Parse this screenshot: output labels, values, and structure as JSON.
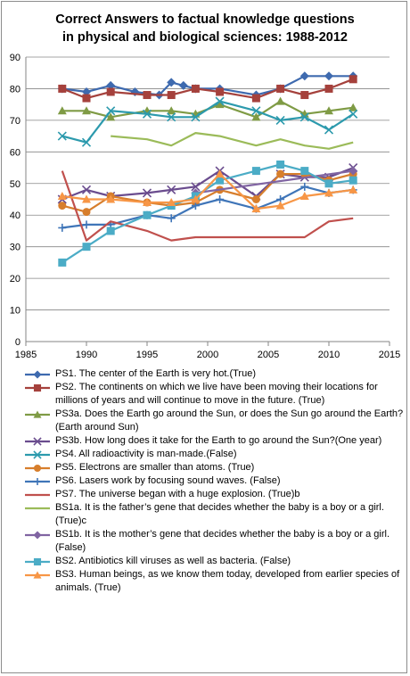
{
  "chart_data": {
    "type": "line",
    "title_lines": [
      "Correct Answers to factual knowledge questions",
      "in physical and biological sciences: 1988-2012"
    ],
    "xlim": [
      1985,
      2015
    ],
    "ylim": [
      0,
      90
    ],
    "x_ticks": [
      1985,
      1990,
      1995,
      2000,
      2005,
      2010,
      2015
    ],
    "y_ticks": [
      0,
      10,
      20,
      30,
      40,
      50,
      60,
      70,
      80,
      90
    ],
    "grid": "horizontal",
    "legend_position": "bottom",
    "series": [
      {
        "name": "PS1. The center of the Earth is very hot.(True)",
        "color": "#3e6aaf",
        "marker": "diamond",
        "points": [
          [
            1988,
            80
          ],
          [
            1990,
            79
          ],
          [
            1992,
            81
          ],
          [
            1994,
            79
          ],
          [
            1996,
            78
          ],
          [
            1997,
            82
          ],
          [
            1998,
            81
          ],
          [
            1999,
            80
          ],
          [
            2001,
            80
          ],
          [
            2004,
            78
          ],
          [
            2006,
            80
          ],
          [
            2008,
            84
          ],
          [
            2010,
            84
          ],
          [
            2012,
            84
          ]
        ]
      },
      {
        "name": "PS2. The continents on which we live have been moving their locations for millions of years and will continue to move in the future. (True)",
        "color": "#a5413c",
        "marker": "square",
        "points": [
          [
            1988,
            80
          ],
          [
            1990,
            77
          ],
          [
            1992,
            79
          ],
          [
            1995,
            78
          ],
          [
            1997,
            78
          ],
          [
            1999,
            80
          ],
          [
            2001,
            79
          ],
          [
            2004,
            77
          ],
          [
            2006,
            80
          ],
          [
            2008,
            78
          ],
          [
            2010,
            80
          ],
          [
            2012,
            83
          ]
        ]
      },
      {
        "name": "PS3a. Does the Earth go around the Sun, or does the Sun go around the Earth? (Earth around Sun)",
        "color": "#7f9b45",
        "marker": "triangle",
        "points": [
          [
            1988,
            73
          ],
          [
            1990,
            73
          ],
          [
            1992,
            71
          ],
          [
            1995,
            73
          ],
          [
            1997,
            73
          ],
          [
            1999,
            72
          ],
          [
            2001,
            75
          ],
          [
            2004,
            71
          ],
          [
            2006,
            76
          ],
          [
            2008,
            72
          ],
          [
            2010,
            73
          ],
          [
            2012,
            74
          ]
        ]
      },
      {
        "name": "PS3b. How long does it take for the Earth to go around the Sun?(One year)",
        "color": "#6a4c8e",
        "marker": "x",
        "points": [
          [
            1988,
            45
          ],
          [
            1990,
            48
          ],
          [
            1992,
            46
          ],
          [
            1995,
            47
          ],
          [
            1997,
            48
          ],
          [
            1999,
            49
          ],
          [
            2001,
            54
          ],
          [
            2004,
            46
          ],
          [
            2006,
            53
          ],
          [
            2008,
            52
          ],
          [
            2010,
            52
          ],
          [
            2012,
            55
          ]
        ]
      },
      {
        "name": "PS4. All radioactivity is man-made.(False)",
        "color": "#2c9aad",
        "marker": "x",
        "points": [
          [
            1988,
            65
          ],
          [
            1990,
            63
          ],
          [
            1992,
            73
          ],
          [
            1995,
            72
          ],
          [
            1997,
            71
          ],
          [
            1999,
            71
          ],
          [
            2001,
            76
          ],
          [
            2004,
            73
          ],
          [
            2006,
            70
          ],
          [
            2008,
            71
          ],
          [
            2010,
            67
          ],
          [
            2012,
            72
          ]
        ]
      },
      {
        "name": "PS5. Electrons are smaller than atoms. (True)",
        "color": "#d77e2c",
        "marker": "circle",
        "points": [
          [
            1988,
            43
          ],
          [
            1990,
            41
          ],
          [
            1992,
            46
          ],
          [
            1995,
            44
          ],
          [
            1997,
            43
          ],
          [
            1999,
            44
          ],
          [
            2001,
            48
          ],
          [
            2004,
            45
          ],
          [
            2006,
            53
          ],
          [
            2008,
            53
          ],
          [
            2010,
            51
          ],
          [
            2012,
            53
          ]
        ]
      },
      {
        "name": "PS6. Lasers work by focusing sound waves. (False)",
        "color": "#3f75b8",
        "marker": "plus",
        "points": [
          [
            1988,
            36
          ],
          [
            1990,
            37
          ],
          [
            1992,
            37
          ],
          [
            1995,
            40
          ],
          [
            1997,
            39
          ],
          [
            1999,
            43
          ],
          [
            2001,
            45
          ],
          [
            2004,
            42
          ],
          [
            2006,
            45
          ],
          [
            2008,
            49
          ],
          [
            2010,
            47
          ],
          [
            2012,
            48
          ]
        ]
      },
      {
        "name": "PS7. The universe began with a huge explosion. (True)b",
        "color": "#c0504d",
        "marker": "none",
        "points": [
          [
            1988,
            54
          ],
          [
            1990,
            32
          ],
          [
            1992,
            38
          ],
          [
            1995,
            35
          ],
          [
            1997,
            32
          ],
          [
            1999,
            33
          ],
          [
            2001,
            33
          ],
          [
            2004,
            33
          ],
          [
            2006,
            33
          ],
          [
            2008,
            33
          ],
          [
            2010,
            38
          ],
          [
            2012,
            39
          ]
        ]
      },
      {
        "name": "BS1a. It is the father’s gene that decides whether the baby is a boy or a girl.(True)c",
        "color": "#9bbb59",
        "marker": "none",
        "points": [
          [
            1992,
            65
          ],
          [
            1995,
            64
          ],
          [
            1997,
            62
          ],
          [
            1999,
            66
          ],
          [
            2001,
            65
          ],
          [
            2004,
            62
          ],
          [
            2006,
            64
          ],
          [
            2008,
            62
          ],
          [
            2010,
            61
          ],
          [
            2012,
            63
          ]
        ]
      },
      {
        "name": "BS1b. It is the mother’s gene that decides whether the baby is a boy or a girl.(False)",
        "color": "#8064a2",
        "marker": "diamond",
        "points": [
          [
            1999,
            47
          ],
          [
            2012,
            54
          ]
        ]
      },
      {
        "name": "BS2. Antibiotics kill viruses as well as bacteria. (False)",
        "color": "#4bacc6",
        "marker": "square",
        "points": [
          [
            1988,
            25
          ],
          [
            1990,
            30
          ],
          [
            1992,
            35
          ],
          [
            1995,
            40
          ],
          [
            1997,
            43
          ],
          [
            1999,
            46
          ],
          [
            2001,
            51
          ],
          [
            2004,
            54
          ],
          [
            2006,
            56
          ],
          [
            2008,
            54
          ],
          [
            2010,
            50
          ],
          [
            2012,
            51
          ]
        ]
      },
      {
        "name": "BS3. Human beings, as we know them today, developed from earlier species of animals. (True)",
        "color": "#f79646",
        "marker": "triangle",
        "points": [
          [
            1988,
            46
          ],
          [
            1990,
            45
          ],
          [
            1992,
            45
          ],
          [
            1995,
            44
          ],
          [
            1997,
            44
          ],
          [
            1999,
            45
          ],
          [
            2001,
            53
          ],
          [
            2004,
            42
          ],
          [
            2006,
            43
          ],
          [
            2008,
            46
          ],
          [
            2010,
            47
          ],
          [
            2012,
            48
          ]
        ]
      }
    ]
  }
}
